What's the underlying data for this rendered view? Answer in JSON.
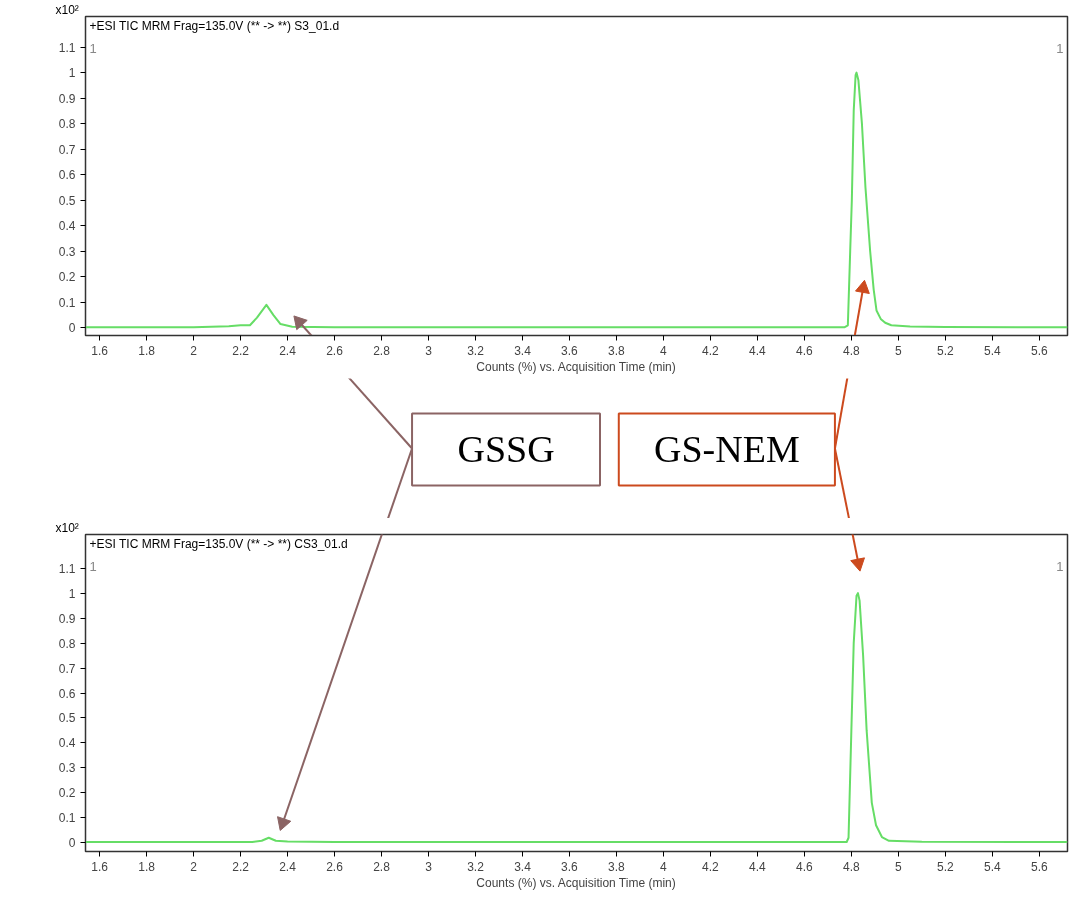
{
  "chart_data": [
    {
      "type": "line",
      "title": "+ESI TIC MRM Frag=135.0V (** -> **) S3_01.d",
      "xlabel": "Counts (%) vs. Acquisition Time (min)",
      "ylabel": "x10²",
      "series": [
        {
          "color": "#66dd66",
          "x": [
            1.54,
            2.0,
            2.15,
            2.2,
            2.24,
            2.27,
            2.31,
            2.34,
            2.37,
            2.42,
            2.6,
            4.0,
            4.77,
            4.785,
            4.795,
            4.802,
            4.81,
            4.818,
            4.822,
            4.83,
            4.845,
            4.86,
            4.88,
            4.895,
            4.907,
            4.925,
            4.944,
            4.97,
            5.05,
            5.2,
            5.72
          ],
          "values": [
            0.002,
            0.002,
            0.006,
            0.01,
            0.01,
            0.04,
            0.09,
            0.05,
            0.015,
            0.004,
            0.002,
            0.002,
            0.002,
            0.01,
            0.3,
            0.5,
            0.85,
            0.99,
            1.0,
            0.97,
            0.8,
            0.55,
            0.3,
            0.15,
            0.068,
            0.035,
            0.02,
            0.01,
            0.005,
            0.003,
            0.002
          ]
        }
      ],
      "xlim": [
        1.54,
        5.72
      ],
      "ylim": [
        -0.03,
        1.22
      ],
      "xticks": [
        1.6,
        1.8,
        2,
        2.2,
        2.4,
        2.6,
        2.8,
        3,
        3.2,
        3.4,
        3.6,
        3.8,
        4,
        4.2,
        4.4,
        4.6,
        4.8,
        5,
        5.2,
        5.4,
        5.6
      ],
      "yticks": [
        0,
        0.1,
        0.2,
        0.3,
        0.4,
        0.5,
        0.6,
        0.7,
        0.8,
        0.9,
        1,
        1.1
      ],
      "grid": false,
      "marker": "none",
      "line_style": "solid",
      "annotations": [
        "1",
        "1",
        {
          "text": "GSSG",
          "x": 2.45,
          "y": 0.023
        },
        {
          "text": "GS-NEM",
          "x": 4.85,
          "y": 0.155
        }
      ]
    },
    {
      "type": "line",
      "title": "+ESI TIC MRM Frag=135.0V (** -> **) CS3_01.d",
      "xlabel": "Counts (%) vs. Acquisition Time (min)",
      "ylabel": "x10²",
      "series": [
        {
          "color": "#66dd66",
          "x": [
            1.54,
            2.25,
            2.29,
            2.32,
            2.35,
            2.4,
            2.6,
            4.78,
            4.788,
            4.8,
            4.81,
            4.822,
            4.828,
            4.835,
            4.85,
            4.865,
            4.887,
            4.905,
            4.93,
            4.96,
            5.1,
            5.72
          ],
          "values": [
            0.003,
            0.003,
            0.008,
            0.02,
            0.008,
            0.005,
            0.003,
            0.003,
            0.02,
            0.45,
            0.8,
            0.99,
            1.0,
            0.97,
            0.75,
            0.45,
            0.16,
            0.07,
            0.023,
            0.008,
            0.004,
            0.003
          ]
        }
      ],
      "xlim": [
        1.54,
        5.72
      ],
      "ylim": [
        -0.035,
        1.235
      ],
      "xticks": [
        1.6,
        1.8,
        2,
        2.2,
        2.4,
        2.6,
        2.8,
        3,
        3.2,
        3.4,
        3.6,
        3.8,
        4,
        4.2,
        4.4,
        4.6,
        4.8,
        5,
        5.2,
        5.4,
        5.6
      ],
      "yticks": [
        0,
        0.1,
        0.2,
        0.3,
        0.4,
        0.5,
        0.6,
        0.7,
        0.8,
        0.9,
        1,
        1.1
      ],
      "grid": false,
      "marker": "none",
      "line_style": "solid",
      "annotations": [
        "1",
        "1"
      ]
    }
  ]
}
